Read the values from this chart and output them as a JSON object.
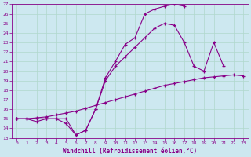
{
  "xlabel": "Windchill (Refroidissement éolien,°C)",
  "bg_color": "#cde8f0",
  "grid_color": "#b0d8cc",
  "line_color": "#880088",
  "xlim": [
    -0.5,
    23.5
  ],
  "ylim": [
    13,
    27
  ],
  "xticks": [
    0,
    1,
    2,
    3,
    4,
    5,
    6,
    7,
    8,
    9,
    10,
    11,
    12,
    13,
    14,
    15,
    16,
    17,
    18,
    19,
    20,
    21,
    22,
    23
  ],
  "yticks": [
    13,
    14,
    15,
    16,
    17,
    18,
    19,
    20,
    21,
    22,
    23,
    24,
    25,
    26,
    27
  ],
  "curves": [
    {
      "x": [
        0,
        1,
        2,
        3,
        4,
        5,
        6,
        7,
        8,
        9,
        10,
        11,
        12,
        13,
        14,
        15,
        16,
        17
      ],
      "y": [
        15,
        15,
        15,
        15,
        15,
        15,
        13.3,
        13.8,
        16.0,
        19.3,
        21.0,
        22.8,
        23.5,
        26.0,
        26.5,
        26.8,
        27.0,
        26.8
      ]
    },
    {
      "x": [
        0,
        1,
        2,
        3,
        4,
        5,
        6,
        7,
        8,
        9,
        10,
        11,
        12,
        13,
        14,
        15,
        16,
        17,
        18,
        19,
        20,
        21
      ],
      "y": [
        15,
        15,
        14.7,
        15.0,
        15.0,
        14.5,
        13.3,
        13.8,
        16.0,
        19.0,
        20.5,
        21.5,
        22.5,
        23.5,
        24.5,
        25.0,
        24.8,
        23.0,
        20.5,
        20.0,
        23.0,
        20.5
      ]
    },
    {
      "x": [
        0,
        1,
        2,
        3,
        4,
        5,
        6,
        7,
        8,
        9,
        10,
        11,
        12,
        13,
        14,
        15,
        16,
        17,
        18,
        19,
        20,
        21,
        22,
        23
      ],
      "y": [
        15,
        15,
        15.1,
        15.2,
        15.4,
        15.6,
        15.8,
        16.1,
        16.4,
        16.7,
        17.0,
        17.3,
        17.6,
        17.9,
        18.2,
        18.5,
        18.7,
        18.9,
        19.1,
        19.3,
        19.4,
        19.5,
        19.6,
        19.5
      ]
    }
  ]
}
